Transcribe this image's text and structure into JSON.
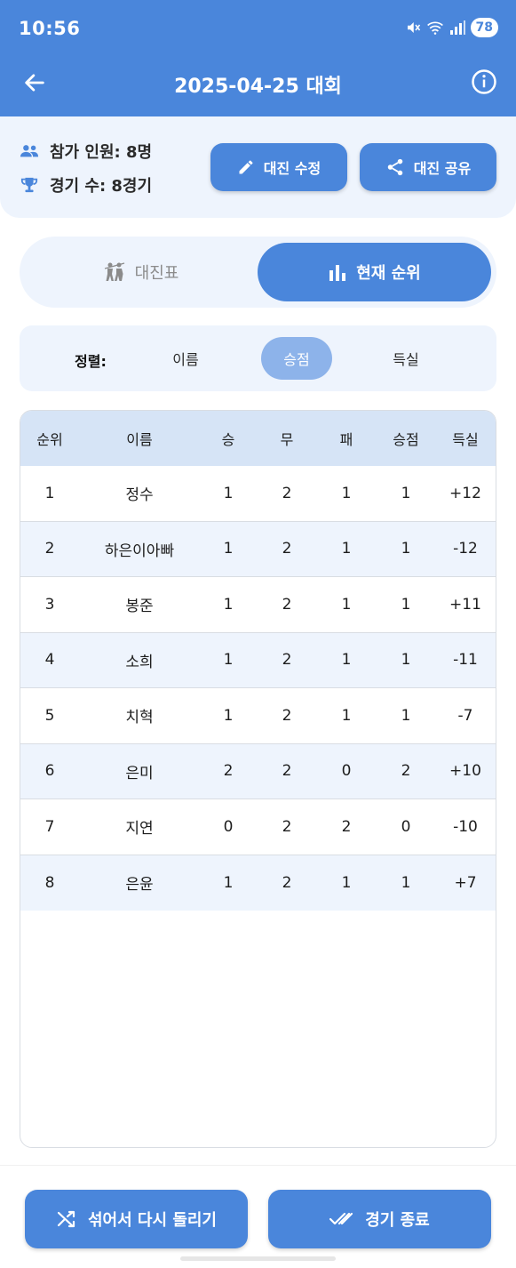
{
  "status_bar": {
    "time": "10:56",
    "battery": "78"
  },
  "header": {
    "title": "2025-04-25 대회",
    "back_icon": "arrow-left-icon",
    "info_icon": "info-icon"
  },
  "summary": {
    "participants": "참가 인원: 8명",
    "games": "경기 수: 8경기",
    "edit_label": "대진 수정",
    "share_label": "대진 공유"
  },
  "view_toggle": {
    "bracket_label": "대진표",
    "ranking_label": "현재 순위",
    "selected": "현재 순위"
  },
  "sort": {
    "label": "정렬:",
    "options": [
      "이름",
      "승점",
      "득실"
    ],
    "selected": "승점"
  },
  "table": {
    "headers": [
      "순위",
      "이름",
      "승",
      "무",
      "패",
      "승점",
      "득실"
    ],
    "rows": [
      [
        "1",
        "정수",
        "1",
        "2",
        "1",
        "1",
        "+12"
      ],
      [
        "2",
        "하은이아빠",
        "1",
        "2",
        "1",
        "1",
        "-12"
      ],
      [
        "3",
        "봉준",
        "1",
        "2",
        "1",
        "1",
        "+11"
      ],
      [
        "4",
        "소희",
        "1",
        "2",
        "1",
        "1",
        "-11"
      ],
      [
        "5",
        "치혁",
        "1",
        "2",
        "1",
        "1",
        "-7"
      ],
      [
        "6",
        "은미",
        "2",
        "2",
        "0",
        "2",
        "+10"
      ],
      [
        "7",
        "지연",
        "0",
        "2",
        "2",
        "0",
        "-10"
      ],
      [
        "8",
        "은윤",
        "1",
        "2",
        "1",
        "1",
        "+7"
      ]
    ]
  },
  "bottom": {
    "shuffle_label": "섞어서 다시 돌리기",
    "finish_label": "경기 종료"
  },
  "colors": {
    "primary": "#4a86db",
    "light": "#eef4fd",
    "header_row": "#d6e4f6",
    "sort_selected": "#8db3ea"
  }
}
